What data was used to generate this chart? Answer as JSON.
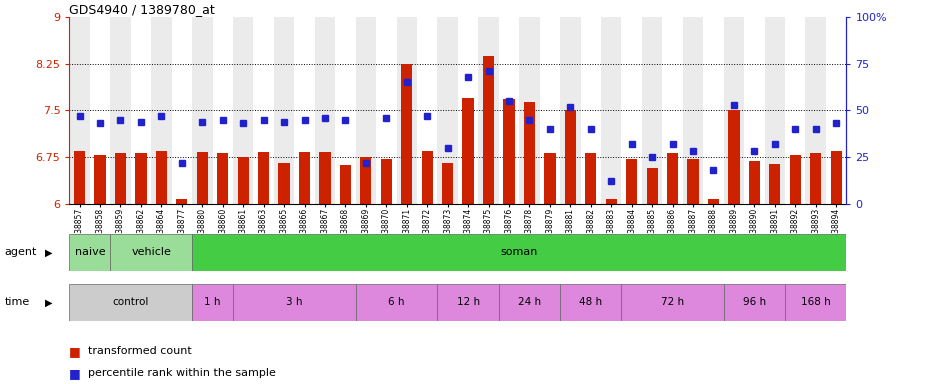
{
  "title": "GDS4940 / 1389780_at",
  "samples": [
    "GSM338857",
    "GSM338858",
    "GSM338859",
    "GSM338862",
    "GSM338864",
    "GSM338877",
    "GSM338880",
    "GSM338860",
    "GSM338861",
    "GSM338863",
    "GSM338865",
    "GSM338866",
    "GSM338867",
    "GSM338868",
    "GSM338869",
    "GSM338870",
    "GSM338871",
    "GSM338872",
    "GSM338873",
    "GSM338874",
    "GSM338875",
    "GSM338876",
    "GSM338878",
    "GSM338879",
    "GSM338881",
    "GSM338882",
    "GSM338883",
    "GSM338884",
    "GSM338885",
    "GSM338886",
    "GSM338887",
    "GSM338888",
    "GSM338889",
    "GSM338890",
    "GSM338891",
    "GSM338892",
    "GSM338893",
    "GSM338894"
  ],
  "bar_values": [
    6.85,
    6.78,
    6.82,
    6.82,
    6.85,
    6.08,
    6.83,
    6.82,
    6.75,
    6.83,
    6.65,
    6.83,
    6.83,
    6.62,
    6.75,
    6.72,
    8.25,
    6.85,
    6.65,
    7.7,
    8.37,
    7.68,
    7.63,
    6.82,
    7.5,
    6.82,
    6.08,
    6.72,
    6.57,
    6.82,
    6.72,
    6.08,
    7.5,
    6.68,
    6.63,
    6.78,
    6.82,
    6.85
  ],
  "percentile_values": [
    47,
    43,
    45,
    44,
    47,
    22,
    44,
    45,
    43,
    45,
    44,
    45,
    46,
    45,
    22,
    46,
    65,
    47,
    30,
    68,
    71,
    55,
    45,
    40,
    52,
    40,
    12,
    32,
    25,
    32,
    28,
    18,
    53,
    28,
    32,
    40,
    40,
    43
  ],
  "ylim_left": [
    6.0,
    9.0
  ],
  "ylim_right": [
    0,
    100
  ],
  "yticks_left": [
    6.0,
    6.75,
    7.5,
    8.25,
    9.0
  ],
  "yticks_right": [
    0,
    25,
    50,
    75,
    100
  ],
  "ytick_labels_left": [
    "6",
    "6.75",
    "7.5",
    "8.25",
    "9"
  ],
  "ytick_labels_right": [
    "0",
    "25",
    "50",
    "75",
    "100%"
  ],
  "hlines": [
    6.75,
    7.5,
    8.25
  ],
  "bar_color": "#cc2200",
  "dot_color": "#2222cc",
  "bg_even": "#ebebeb",
  "bg_odd": "#ffffff",
  "agent_groups": [
    {
      "label": "naive",
      "start": 0,
      "end": 2,
      "color": "#99dd99"
    },
    {
      "label": "vehicle",
      "start": 2,
      "end": 6,
      "color": "#99dd99"
    },
    {
      "label": "soman",
      "start": 6,
      "end": 38,
      "color": "#44cc44"
    }
  ],
  "time_groups": [
    {
      "label": "control",
      "start": 0,
      "end": 6,
      "color": "#cccccc"
    },
    {
      "label": "1 h",
      "start": 6,
      "end": 8,
      "color": "#dd88dd"
    },
    {
      "label": "3 h",
      "start": 8,
      "end": 14,
      "color": "#dd88dd"
    },
    {
      "label": "6 h",
      "start": 14,
      "end": 18,
      "color": "#dd88dd"
    },
    {
      "label": "12 h",
      "start": 18,
      "end": 21,
      "color": "#dd88dd"
    },
    {
      "label": "24 h",
      "start": 21,
      "end": 24,
      "color": "#dd88dd"
    },
    {
      "label": "48 h",
      "start": 24,
      "end": 27,
      "color": "#dd88dd"
    },
    {
      "label": "72 h",
      "start": 27,
      "end": 32,
      "color": "#dd88dd"
    },
    {
      "label": "96 h",
      "start": 32,
      "end": 35,
      "color": "#dd88dd"
    },
    {
      "label": "168 h",
      "start": 35,
      "end": 38,
      "color": "#dd88dd"
    }
  ],
  "legend_bar_label": "transformed count",
  "legend_dot_label": "percentile rank within the sample",
  "agent_label": "agent",
  "time_label": "time",
  "fig_width": 9.25,
  "fig_height": 3.84,
  "dpi": 100
}
